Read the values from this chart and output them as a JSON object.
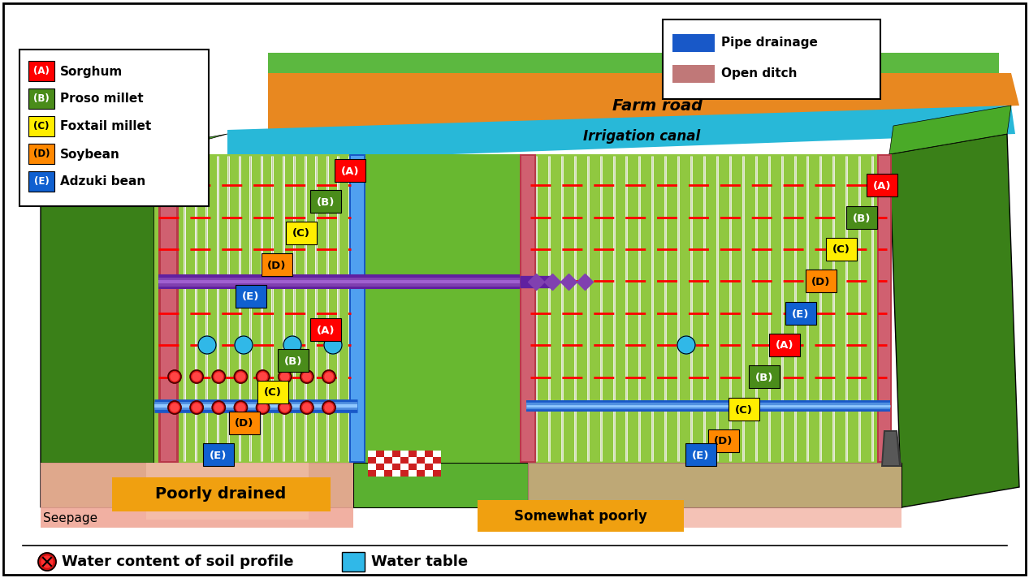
{
  "bg": "#ffffff",
  "green_mid": "#5cb840",
  "green_dark": "#3a8018",
  "green_wall_side": "#4aaa28",
  "green_field": "#90c840",
  "green_field2": "#a8d050",
  "orange_road": "#e88820",
  "cyan_canal": "#28b8d8",
  "blue_pipe": "#1858c8",
  "blue_light": "#50a0f0",
  "red_ditch": "#b83848",
  "red_ditch2": "#d06070",
  "purple": "#6020a0",
  "purple2": "#8040b0",
  "pink_sub": "#f0a898",
  "pink_sub2": "#f8c8b0",
  "orange_label": "#f0a010",
  "seepage_col": "#1840b0",
  "crop_A": "#ff0000",
  "crop_B": "#4a8c1a",
  "crop_C": "#ffee00",
  "crop_D": "#ff8800",
  "crop_E": "#1060d0",
  "wc_red": "#cc1010",
  "wt_cyan": "#30b8e8",
  "legend_items": [
    {
      "letter": "A",
      "color": "#ff0000",
      "tc": "white",
      "label": "Sorghum"
    },
    {
      "letter": "B",
      "color": "#4a8c1a",
      "tc": "white",
      "label": "Proso millet"
    },
    {
      "letter": "C",
      "color": "#ffee00",
      "tc": "black",
      "label": "Foxtail millet"
    },
    {
      "letter": "D",
      "color": "#ff8800",
      "tc": "black",
      "label": "Soybean"
    },
    {
      "letter": "E",
      "color": "#1060d0",
      "tc": "white",
      "label": "Adzuki bean"
    }
  ]
}
